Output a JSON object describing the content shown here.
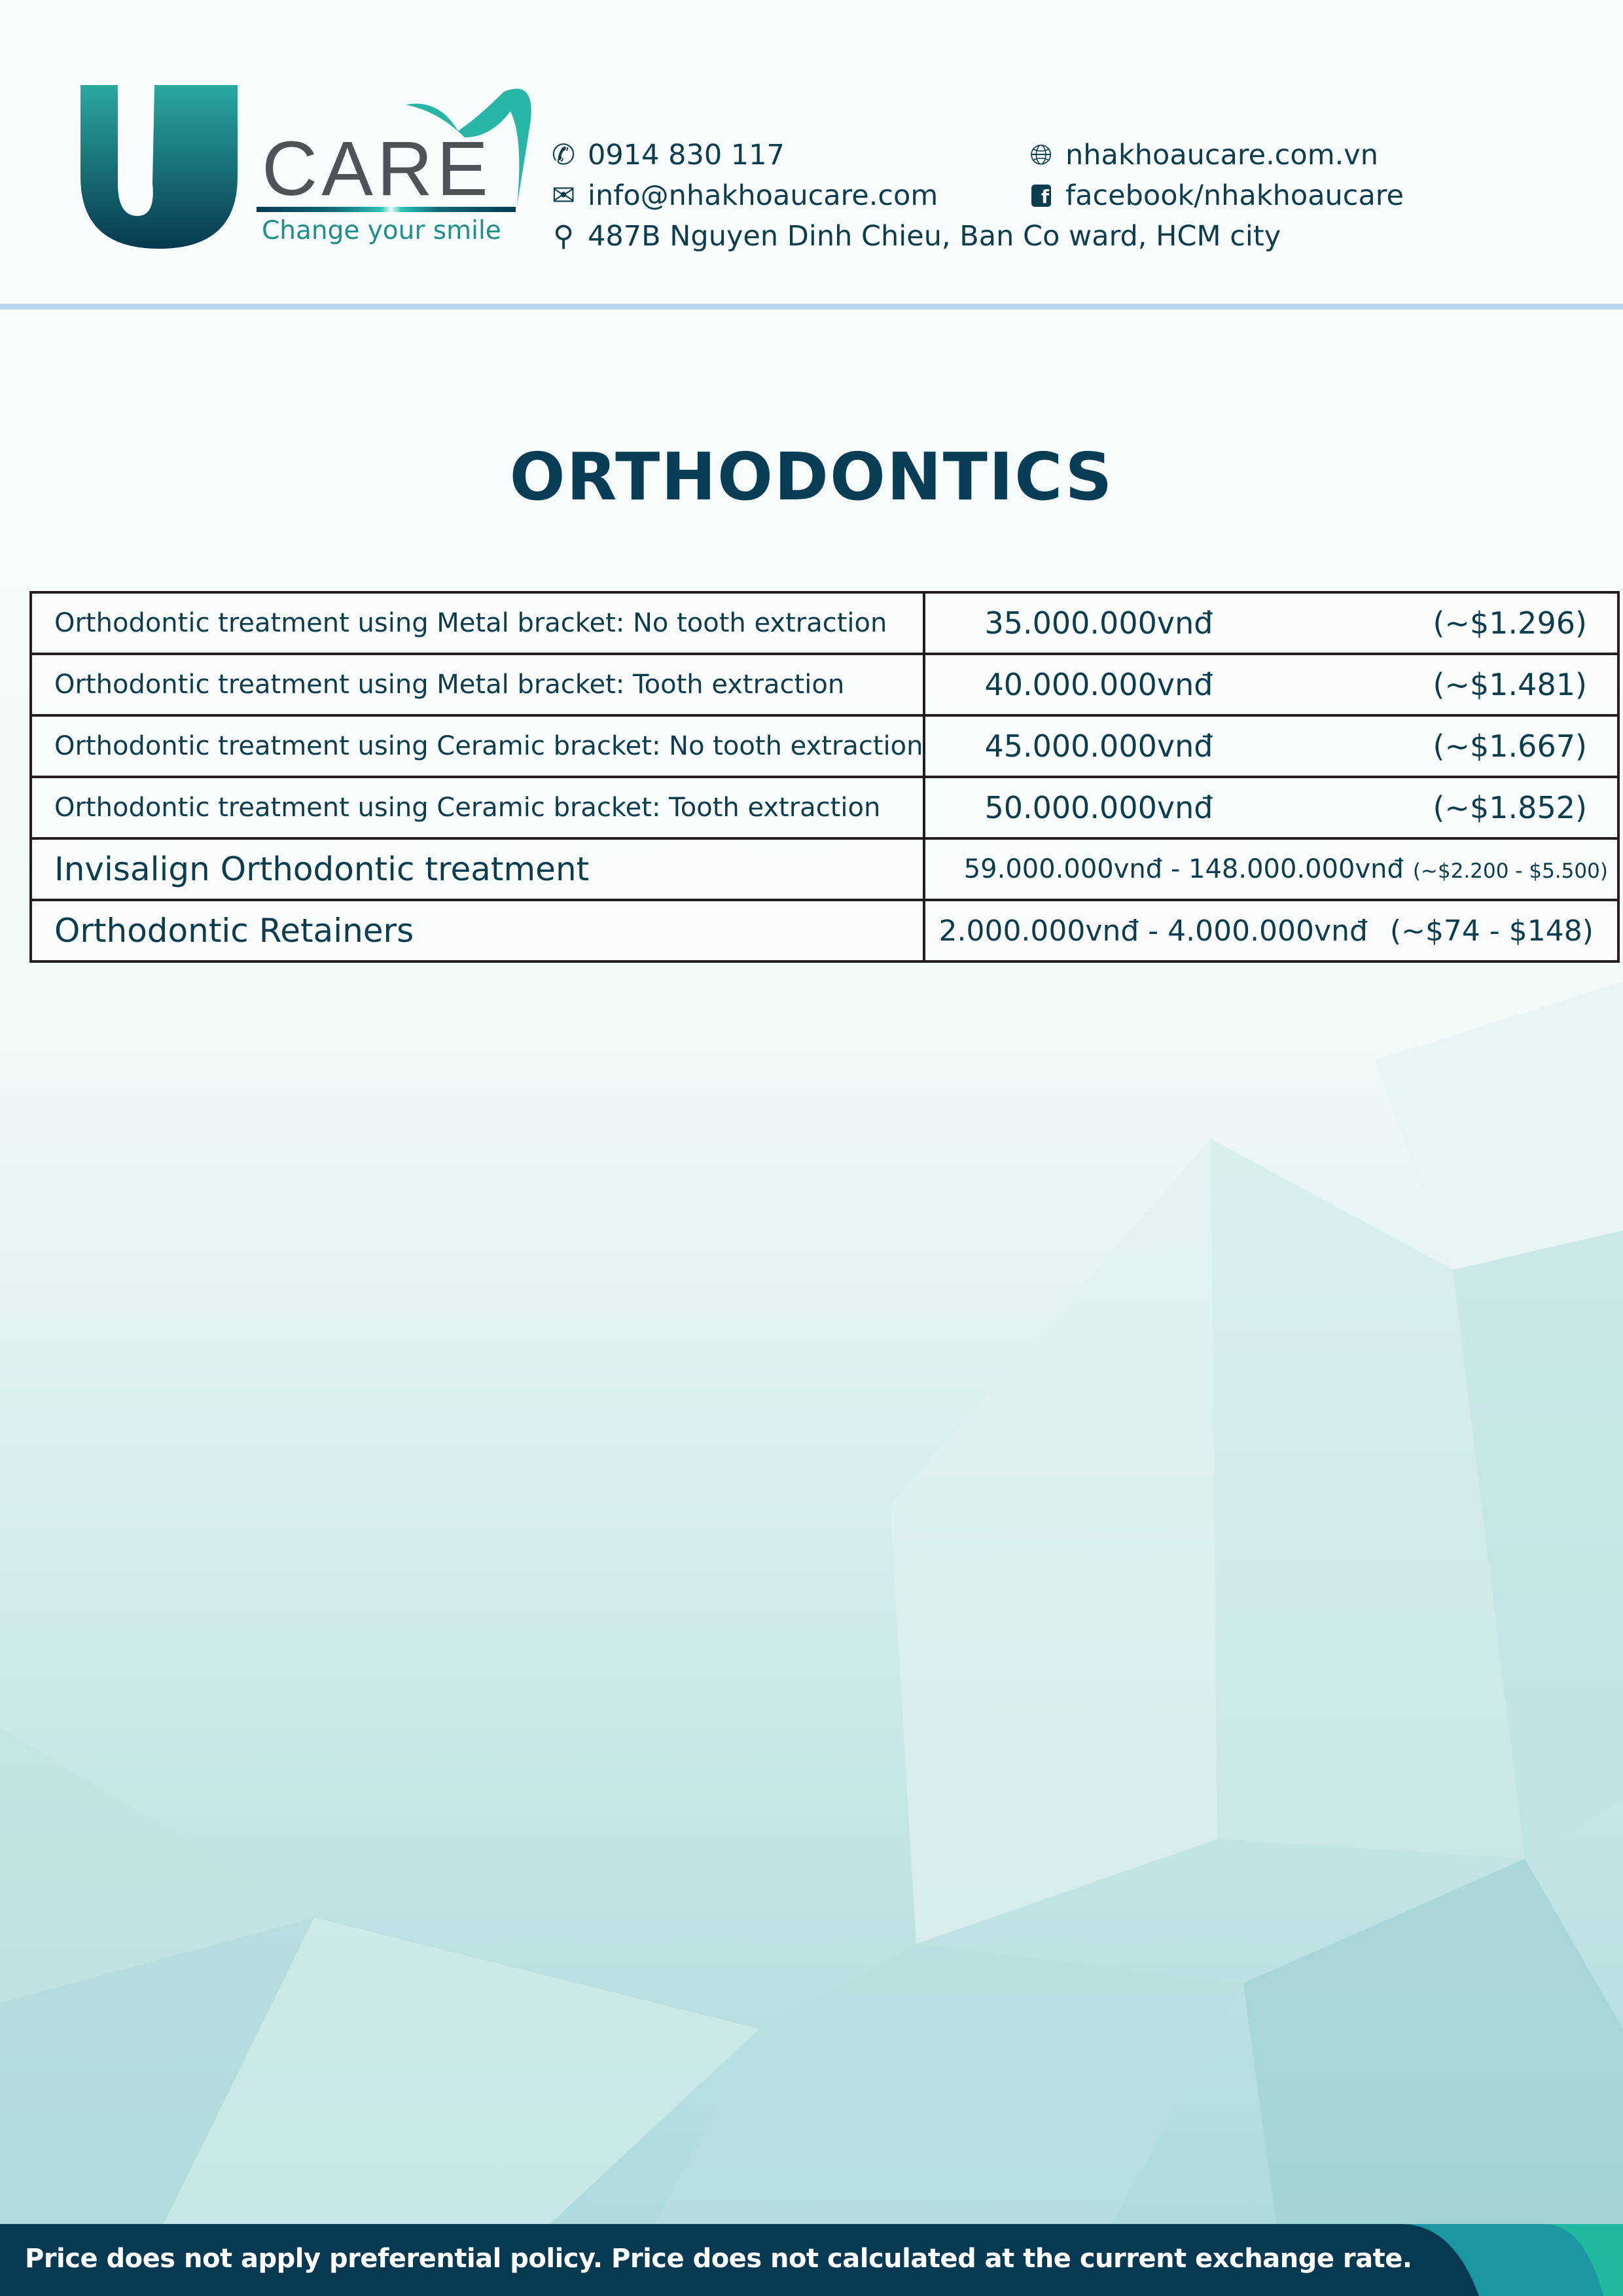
{
  "brand": {
    "name": "CARE",
    "logo_letter": "U",
    "slogan": "Change your smile",
    "colors": {
      "primary": "#083d55",
      "teal": "#21b8a0",
      "accent_line": "#b6d6ea"
    }
  },
  "contact": {
    "phone": {
      "icon": "phone-icon",
      "text": "0914 830 117"
    },
    "email": {
      "icon": "envelope-icon",
      "text": "info@nhakhoaucare.com"
    },
    "address": {
      "icon": "map-pin-icon",
      "text": "487B Nguyen Dinh Chieu, Ban Co ward, HCM city"
    },
    "website": {
      "icon": "globe-icon",
      "text": "nhakhoaucare.com.vn"
    },
    "facebook": {
      "icon": "facebook-icon",
      "text": "facebook/nhakhoaucare"
    }
  },
  "page_title": "ORTHODONTICS",
  "price_table": {
    "rows": [
      {
        "service": "Orthodontic treatment using Metal bracket: No tooth extraction",
        "price": "35.000.000vnđ",
        "usd": "(~$1.296)"
      },
      {
        "service": "Orthodontic treatment using Metal bracket: Tooth extraction",
        "price": "40.000.000vnđ",
        "usd": "(~$1.481)"
      },
      {
        "service": "Orthodontic treatment using Ceramic bracket: No tooth extraction",
        "price": "45.000.000vnđ",
        "usd": "(~$1.667)"
      },
      {
        "service": "Orthodontic treatment using Ceramic bracket: Tooth extraction",
        "price": "50.000.000vnđ",
        "usd": "(~$1.852)"
      },
      {
        "service": "Invisalign Orthodontic treatment",
        "price": "59.000.000vnđ - 148.000.000vnđ",
        "usd": "(~$2.200 - $5.500)"
      },
      {
        "service": "Orthodontic Retainers",
        "price": "2.000.000vnđ - 4.000.000vnđ",
        "usd": "(~$74 - $148)"
      }
    ]
  },
  "footer": {
    "note": "Price does not apply preferential policy. Price does not calculated at the current exchange rate."
  }
}
